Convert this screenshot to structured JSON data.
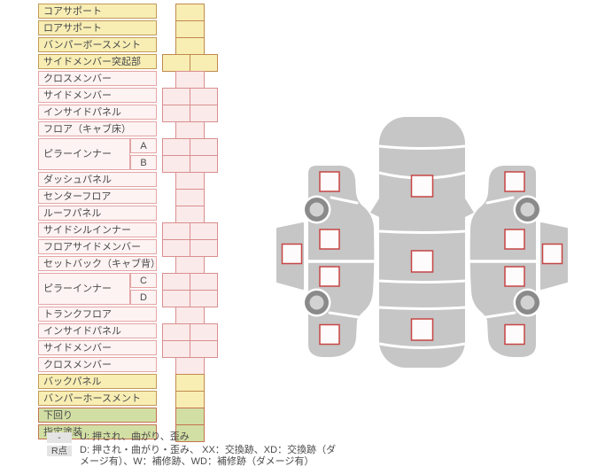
{
  "page": {
    "background": "#ffffff"
  },
  "table": {
    "rows": [
      {
        "label": "コアサポート",
        "color": "yellow",
        "cells": 1,
        "values": [
          ""
        ]
      },
      {
        "label": "ロアサポート",
        "color": "yellow",
        "cells": 1,
        "values": [
          ""
        ]
      },
      {
        "label": "バンパーボースメント",
        "color": "yellow",
        "cells": 1,
        "values": [
          ""
        ]
      },
      {
        "label": "サイドメンバー突起部",
        "color": "yellow",
        "cells": 2,
        "values": [
          "",
          ""
        ]
      },
      {
        "label": "クロスメンバー",
        "color": "pink",
        "cells": 1,
        "values": [
          ""
        ]
      },
      {
        "label": "サイドメンバー",
        "color": "pink",
        "cells": 2,
        "values": [
          "",
          ""
        ]
      },
      {
        "label": "インサイドパネル",
        "color": "pink",
        "cells": 2,
        "values": [
          "",
          ""
        ]
      },
      {
        "label": "フロア（キャブ床）",
        "color": "pink",
        "cells": 1,
        "values": [
          ""
        ]
      },
      {
        "label": "ピラーインナー",
        "sub": "A",
        "row_span": 2,
        "color": "pink",
        "cells": 2,
        "values": [
          "",
          ""
        ]
      },
      {
        "label": "",
        "sub": "B",
        "color": "pink",
        "cells": 2,
        "values": [
          "",
          ""
        ]
      },
      {
        "label": "ダッシュパネル",
        "color": "pink",
        "cells": 1,
        "values": [
          ""
        ]
      },
      {
        "label": "センターフロア",
        "color": "pink",
        "cells": 1,
        "values": [
          ""
        ]
      },
      {
        "label": "ルーフパネル",
        "color": "pink",
        "cells": 1,
        "values": [
          ""
        ]
      },
      {
        "label": "サイドシルインナー",
        "color": "pink",
        "cells": 2,
        "values": [
          "",
          ""
        ]
      },
      {
        "label": "フロアサイドメンバー",
        "color": "pink",
        "cells": 2,
        "values": [
          "",
          ""
        ]
      },
      {
        "label": "セットバック（キャブ背）",
        "color": "pink",
        "cells": 1,
        "values": [
          ""
        ]
      },
      {
        "label": "ピラーインナー",
        "sub": "C",
        "row_span": 2,
        "color": "pink",
        "cells": 2,
        "values": [
          "",
          ""
        ]
      },
      {
        "label": "",
        "sub": "D",
        "color": "pink",
        "cells": 2,
        "values": [
          "",
          ""
        ]
      },
      {
        "label": "トランクフロア",
        "color": "pink",
        "cells": 1,
        "values": [
          ""
        ]
      },
      {
        "label": "インサイドパネル",
        "color": "pink",
        "cells": 2,
        "values": [
          "",
          ""
        ]
      },
      {
        "label": "サイドメンバー",
        "color": "pink",
        "cells": 2,
        "values": [
          "",
          ""
        ]
      },
      {
        "label": "クロスメンバー",
        "color": "pink",
        "cells": 1,
        "values": [
          ""
        ]
      },
      {
        "label": "バックパネル",
        "color": "yellow",
        "cells": 1,
        "values": [
          ""
        ]
      },
      {
        "label": "バンパーホースメント",
        "color": "yellow",
        "cells": 1,
        "values": [
          ""
        ]
      },
      {
        "label": "下回り",
        "color": "green",
        "cells": 1,
        "values": [
          ""
        ]
      },
      {
        "label": "指定塗装",
        "color": "green",
        "cells": 1,
        "values": [
          ""
        ]
      }
    ],
    "row_colors": {
      "yellow": {
        "fill": "#f8eeb4",
        "border": "#c29a58"
      },
      "pink_label": {
        "fill": "#fdf3f3",
        "border": "#e5a5a5"
      },
      "pink_cell": {
        "fill": "#fbeaea",
        "border": "#d98f8f"
      },
      "green": {
        "fill": "#d2dfa4",
        "border": "#c4724f"
      }
    }
  },
  "diagram": {
    "colors": {
      "body": "#c6c6c6",
      "wheel_ring": "#8a8a8a",
      "wheel_hub": "#d2d2d2",
      "marker_border": "#c64545",
      "marker_fill": "#fdfbfb"
    },
    "views": [
      {
        "name": "left-side",
        "wheels": 2,
        "markers": [
          {
            "id": "left-1",
            "value": ""
          },
          {
            "id": "left-2",
            "value": ""
          },
          {
            "id": "left-outer",
            "value": ""
          },
          {
            "id": "left-3",
            "value": ""
          },
          {
            "id": "left-4",
            "value": ""
          }
        ]
      },
      {
        "name": "underbody",
        "markers": [
          {
            "id": "center-1",
            "value": ""
          },
          {
            "id": "center-2",
            "value": ""
          },
          {
            "id": "center-3",
            "value": ""
          }
        ]
      },
      {
        "name": "right-side",
        "wheels": 2,
        "markers": [
          {
            "id": "right-1",
            "value": ""
          },
          {
            "id": "right-2",
            "value": ""
          },
          {
            "id": "right-outer",
            "value": ""
          },
          {
            "id": "right-3",
            "value": ""
          },
          {
            "id": "right-4",
            "value": ""
          }
        ]
      }
    ]
  },
  "legend": {
    "rows": [
      {
        "key": "-",
        "text": "U: 押され、曲がり、歪み"
      },
      {
        "key": "R点",
        "text": "D: 押され・曲がり・歪み、 XX：交換跡、XD：交換跡（ダメージ有）、W：補修跡、WD：補修跡（ダメージ有）"
      }
    ],
    "badge_bg": "#e4e4e4"
  }
}
